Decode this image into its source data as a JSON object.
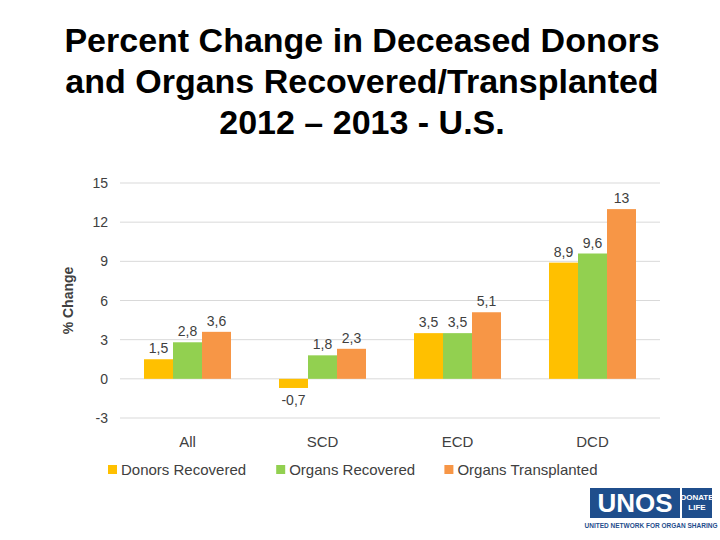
{
  "chart_data": {
    "type": "bar",
    "title": "Percent Change in Deceased Donors\nand Organs Recovered/Transplanted\n2012 – 2013 - U.S.",
    "y_label": "% Change",
    "categories": [
      "All",
      "SCD",
      "ECD",
      "DCD"
    ],
    "series": [
      {
        "name": "Donors Recovered",
        "color": "#ffc000",
        "values": [
          1.5,
          -0.7,
          3.5,
          8.9
        ],
        "value_labels": [
          "1,5",
          "-0,7",
          "3,5",
          "8,9"
        ]
      },
      {
        "name": "Organs Recovered",
        "color": "#92d050",
        "values": [
          2.8,
          1.8,
          3.5,
          9.6
        ],
        "value_labels": [
          "2,8",
          "1,8",
          "3,5",
          "9,6"
        ]
      },
      {
        "name": "Organs Transplanted",
        "color": "#f79646",
        "values": [
          3.6,
          2.3,
          5.1,
          13
        ],
        "value_labels": [
          "3,6",
          "2,3",
          "5,1",
          "13"
        ]
      }
    ],
    "ylim": [
      -3,
      15
    ],
    "yticks": [
      -3,
      0,
      3,
      6,
      9,
      12,
      15
    ],
    "grid": true,
    "legend": "bottom",
    "data_labels": true
  },
  "logo": {
    "name": "UNOS",
    "badge": "DONATE LIFE",
    "tagline": "UNITED NETWORK FOR ORGAN SHARING"
  }
}
